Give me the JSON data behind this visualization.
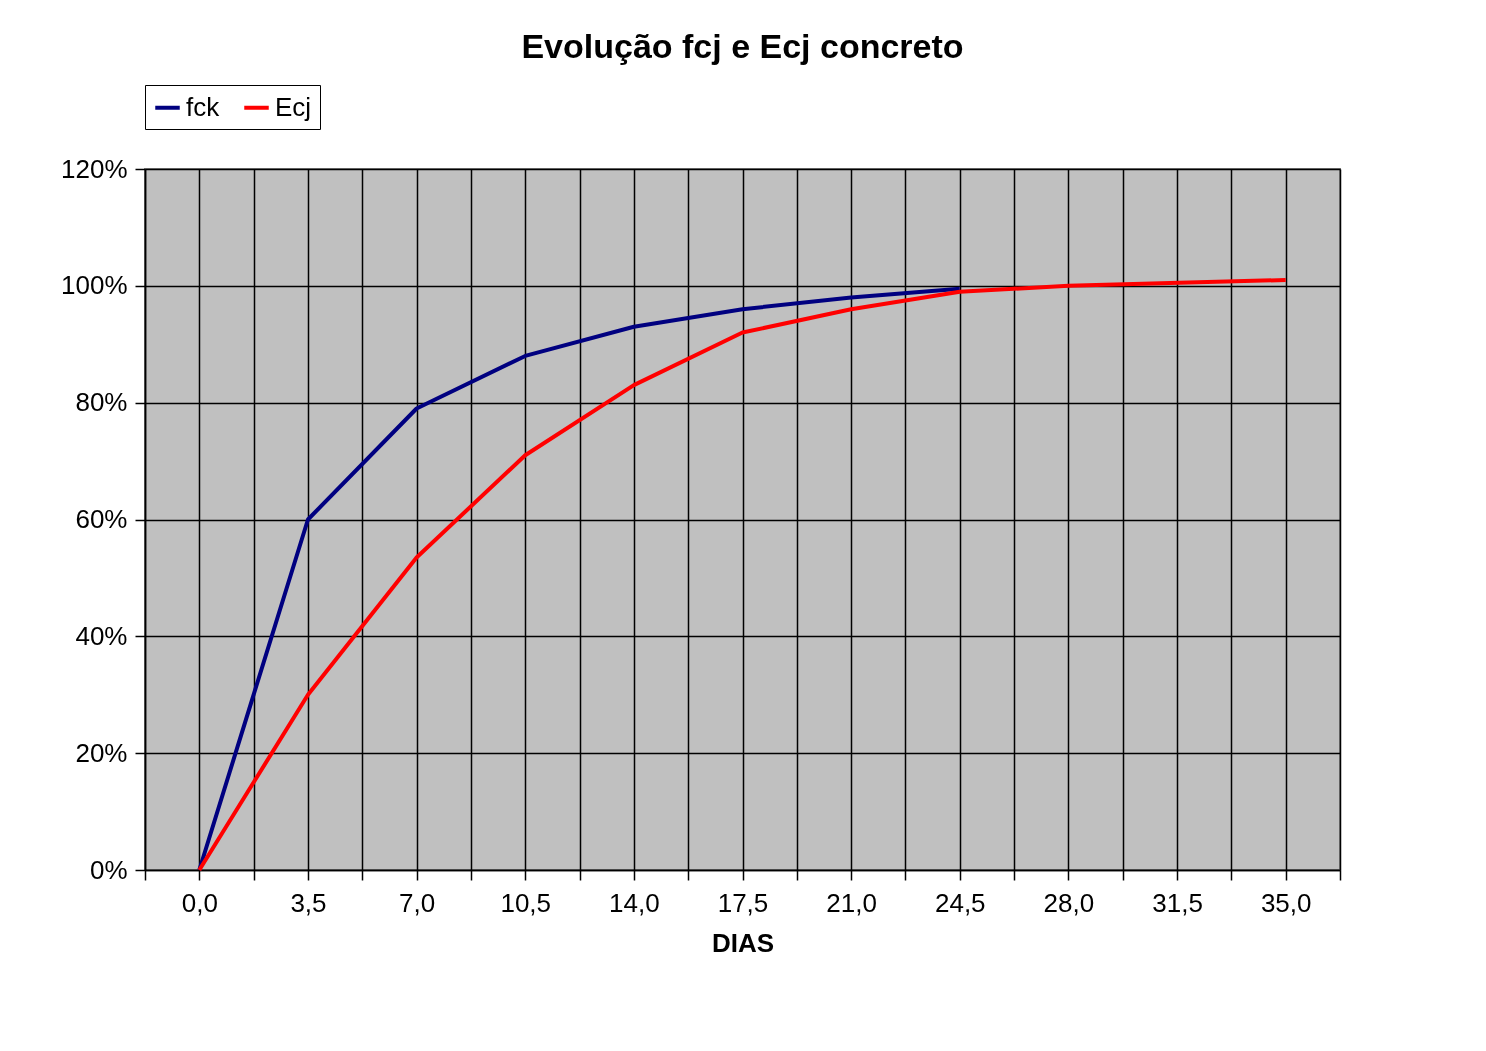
{
  "chart_data": {
    "type": "line",
    "title": "Evolução fcj e Ecj concreto",
    "xlabel": "DIAS",
    "x": [
      0,
      3.5,
      7,
      10.5,
      14,
      17.5,
      21,
      24.5,
      28,
      35
    ],
    "series": [
      {
        "name": "fck",
        "color": "#000080",
        "values": [
          0,
          60,
          79,
          88,
          93,
          96,
          98,
          99.5,
          null,
          null
        ]
      },
      {
        "name": "Ecj",
        "color": "#ff0000",
        "values": [
          0,
          30,
          53.5,
          71,
          83,
          92,
          96,
          99,
          100,
          101
        ]
      }
    ],
    "xlim": [
      -1.75,
      36.75
    ],
    "xticks": [
      {
        "value": -1.75,
        "label": null
      },
      {
        "value": 0,
        "label": "0,0"
      },
      {
        "value": 1.75,
        "label": null
      },
      {
        "value": 3.5,
        "label": "3,5"
      },
      {
        "value": 5.25,
        "label": null
      },
      {
        "value": 7,
        "label": "7,0"
      },
      {
        "value": 8.75,
        "label": null
      },
      {
        "value": 10.5,
        "label": "10,5"
      },
      {
        "value": 12.25,
        "label": null
      },
      {
        "value": 14,
        "label": "14,0"
      },
      {
        "value": 15.75,
        "label": null
      },
      {
        "value": 17.5,
        "label": "17,5"
      },
      {
        "value": 19.25,
        "label": null
      },
      {
        "value": 21,
        "label": "21,0"
      },
      {
        "value": 22.75,
        "label": null
      },
      {
        "value": 24.5,
        "label": "24,5"
      },
      {
        "value": 26.25,
        "label": null
      },
      {
        "value": 28,
        "label": "28,0"
      },
      {
        "value": 29.75,
        "label": null
      },
      {
        "value": 31.5,
        "label": "31,5"
      },
      {
        "value": 33.25,
        "label": null
      },
      {
        "value": 35,
        "label": "35,0"
      },
      {
        "value": 36.75,
        "label": null
      }
    ],
    "ylim": [
      0,
      120
    ],
    "yticks": [
      {
        "value": 0,
        "label": "0%"
      },
      {
        "value": 20,
        "label": "20%"
      },
      {
        "value": 40,
        "label": "40%"
      },
      {
        "value": 60,
        "label": "60%"
      },
      {
        "value": 80,
        "label": "80%"
      },
      {
        "value": 100,
        "label": "100%"
      },
      {
        "value": 120,
        "label": "120%"
      }
    ],
    "grid": true,
    "legend": "top",
    "marker": "none",
    "line_style": "solid"
  }
}
